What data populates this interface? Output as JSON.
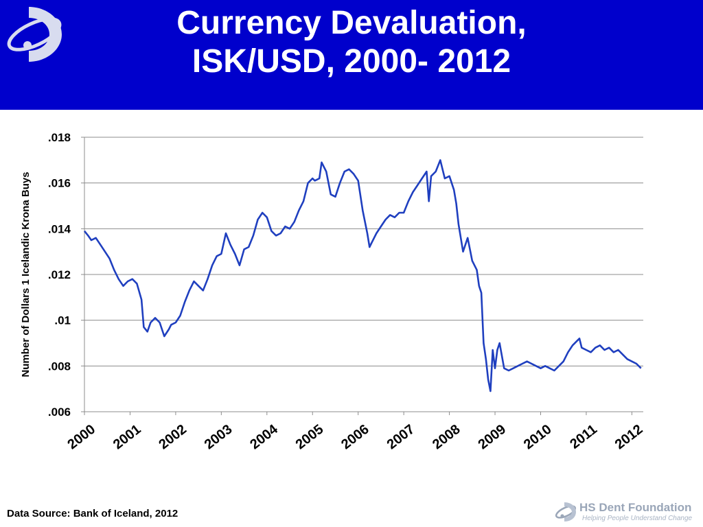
{
  "header": {
    "title_line1": "Currency Devaluation,",
    "title_line2": "ISK/USD, 2000- 2012",
    "background": "#0000cc",
    "logo_icon": "hs-dent-swoosh-icon"
  },
  "footer": {
    "source": "Data Source: Bank of Iceland, 2012",
    "brand_name": "HS Dent Foundation",
    "brand_tagline": "Helping People Understand Change",
    "brand_color": "#9aa6b8"
  },
  "chart_data": {
    "type": "line",
    "title": "",
    "xlabel": "",
    "ylabel": "Number of Dollars 1 Icelandic Krona Buys",
    "xlim": [
      2000,
      2012.25
    ],
    "ylim": [
      0.006,
      0.018
    ],
    "y_ticks": [
      0.006,
      0.008,
      0.01,
      0.012,
      0.014,
      0.016,
      0.018
    ],
    "y_tick_labels": [
      ".006",
      ".008",
      ".01",
      ".012",
      ".014",
      ".016",
      ".018"
    ],
    "x_ticks": [
      2000,
      2001,
      2002,
      2003,
      2004,
      2005,
      2006,
      2007,
      2008,
      2009,
      2010,
      2011,
      2012
    ],
    "x_tick_labels": [
      "2000",
      "2001",
      "2002",
      "2003",
      "2004",
      "2005",
      "2006",
      "2007",
      "2008",
      "2009",
      "2010",
      "2011",
      "2012"
    ],
    "grid": "horizontal",
    "line_color": "#1f3fbf",
    "series": [
      {
        "x": [
          2000.0,
          2000.08,
          2000.15,
          2000.25,
          2000.35,
          2000.45,
          2000.55,
          2000.65,
          2000.75,
          2000.85,
          2000.95,
          2001.05,
          2001.15,
          2001.25,
          2001.3,
          2001.38,
          2001.45,
          2001.55,
          2001.65,
          2001.75,
          2001.85,
          2001.9,
          2002.0,
          2002.1,
          2002.2,
          2002.3,
          2002.4,
          2002.5,
          2002.6,
          2002.7,
          2002.8,
          2002.9,
          2003.0,
          2003.1,
          2003.2,
          2003.3,
          2003.4,
          2003.5,
          2003.6,
          2003.7,
          2003.8,
          2003.9,
          2004.0,
          2004.1,
          2004.2,
          2004.3,
          2004.4,
          2004.5,
          2004.6,
          2004.7,
          2004.8,
          2004.9,
          2005.0,
          2005.05,
          2005.15,
          2005.2,
          2005.3,
          2005.4,
          2005.5,
          2005.6,
          2005.7,
          2005.8,
          2005.9,
          2006.0,
          2006.1,
          2006.2,
          2006.25,
          2006.3,
          2006.4,
          2006.5,
          2006.6,
          2006.7,
          2006.8,
          2006.9,
          2007.0,
          2007.1,
          2007.2,
          2007.3,
          2007.4,
          2007.5,
          2007.55,
          2007.6,
          2007.7,
          2007.8,
          2007.85,
          2007.9,
          2008.0,
          2008.1,
          2008.15,
          2008.2,
          2008.3,
          2008.4,
          2008.45,
          2008.5,
          2008.6,
          2008.65,
          2008.7,
          2008.75,
          2008.8,
          2008.85,
          2008.9,
          2008.95,
          2009.0,
          2009.05,
          2009.1,
          2009.2,
          2009.3,
          2009.4,
          2009.5,
          2009.6,
          2009.7,
          2009.8,
          2009.9,
          2010.0,
          2010.1,
          2010.2,
          2010.3,
          2010.4,
          2010.5,
          2010.6,
          2010.7,
          2010.8,
          2010.85,
          2010.9,
          2011.0,
          2011.1,
          2011.2,
          2011.3,
          2011.4,
          2011.5,
          2011.6,
          2011.7,
          2011.8,
          2011.9,
          2012.0,
          2012.1,
          2012.2
        ],
        "y": [
          0.0139,
          0.0137,
          0.0135,
          0.0136,
          0.0133,
          0.013,
          0.0127,
          0.0122,
          0.0118,
          0.0115,
          0.0117,
          0.0118,
          0.0116,
          0.0109,
          0.0097,
          0.0095,
          0.0099,
          0.0101,
          0.0099,
          0.0093,
          0.0096,
          0.0098,
          0.0099,
          0.0102,
          0.0108,
          0.0113,
          0.0117,
          0.0115,
          0.0113,
          0.0118,
          0.0124,
          0.0128,
          0.0129,
          0.0138,
          0.0133,
          0.0129,
          0.0124,
          0.0131,
          0.0132,
          0.0137,
          0.0144,
          0.0147,
          0.0145,
          0.0139,
          0.0137,
          0.0138,
          0.0141,
          0.014,
          0.0143,
          0.0148,
          0.0152,
          0.016,
          0.0162,
          0.0161,
          0.0162,
          0.0169,
          0.0165,
          0.0155,
          0.0154,
          0.016,
          0.0165,
          0.0166,
          0.0164,
          0.0161,
          0.0148,
          0.0138,
          0.0132,
          0.0134,
          0.0138,
          0.0141,
          0.0144,
          0.0146,
          0.0145,
          0.0147,
          0.0147,
          0.0152,
          0.0156,
          0.0159,
          0.0162,
          0.0165,
          0.0152,
          0.0163,
          0.0165,
          0.017,
          0.0166,
          0.0162,
          0.0163,
          0.0157,
          0.0151,
          0.0142,
          0.013,
          0.0136,
          0.0131,
          0.0126,
          0.0122,
          0.0115,
          0.0112,
          0.009,
          0.0083,
          0.0074,
          0.0069,
          0.0087,
          0.0079,
          0.0087,
          0.009,
          0.0079,
          0.0078,
          0.0079,
          0.008,
          0.0081,
          0.0082,
          0.0081,
          0.008,
          0.0079,
          0.008,
          0.0079,
          0.0078,
          0.008,
          0.0082,
          0.0086,
          0.0089,
          0.0091,
          0.0092,
          0.0088,
          0.0087,
          0.0086,
          0.0088,
          0.0089,
          0.0087,
          0.0088,
          0.0086,
          0.0087,
          0.0085,
          0.0083,
          0.0082,
          0.0081,
          0.0079
        ]
      }
    ]
  }
}
